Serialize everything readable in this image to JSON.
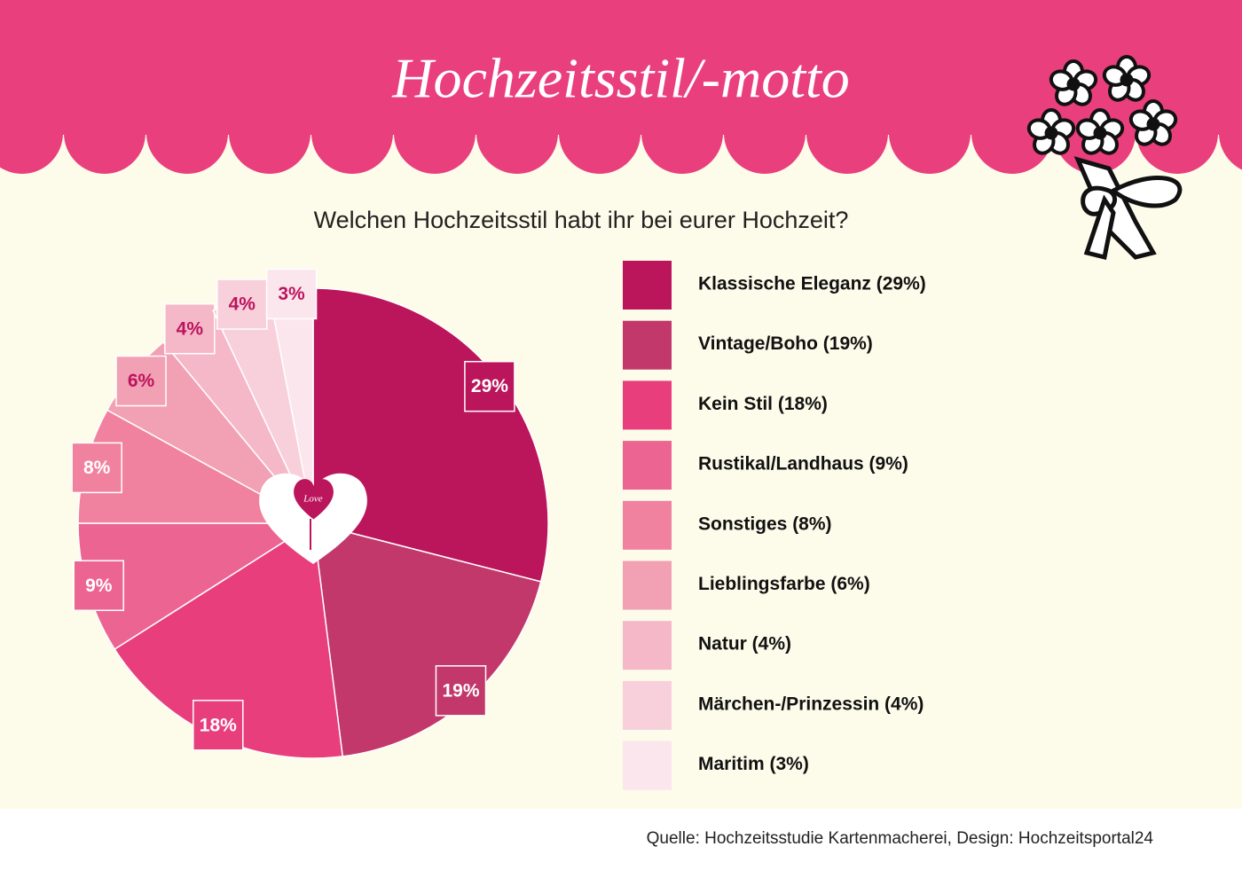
{
  "chart_data": {
    "type": "pie",
    "title": "Hochzeitsstil/-motto",
    "subtitle": "Welchen Hochzeitsstil habt ihr bei eurer Hochzeit?",
    "source": "Quelle: Hochzeitsstudie Kartenmacherei, Design: Hochzeitsportal24",
    "annotation": "Love",
    "categories": [
      "Klassische Eleganz (29%)",
      "Vintage/Boho (19%)",
      "Kein Stil (18%)",
      "Rustikal/Landhaus (9%)",
      "Sonstiges (8%)",
      "Lieblingsfarbe (6%)",
      "Natur (4%)",
      "Märchen-/Prinzessin (4%)",
      "Maritim (3%)"
    ],
    "values": [
      29,
      19,
      18,
      9,
      8,
      6,
      4,
      4,
      3
    ],
    "value_labels": [
      "29%",
      "19%",
      "18%",
      "9%",
      "8%",
      "6%",
      "4%",
      "4%",
      "3%"
    ],
    "colors": [
      "#bb155c",
      "#c2386a",
      "#e83e7c",
      "#ec6592",
      "#f082a0",
      "#f2a0b4",
      "#f5b8c9",
      "#f8d0dc",
      "#fce6ed"
    ]
  }
}
